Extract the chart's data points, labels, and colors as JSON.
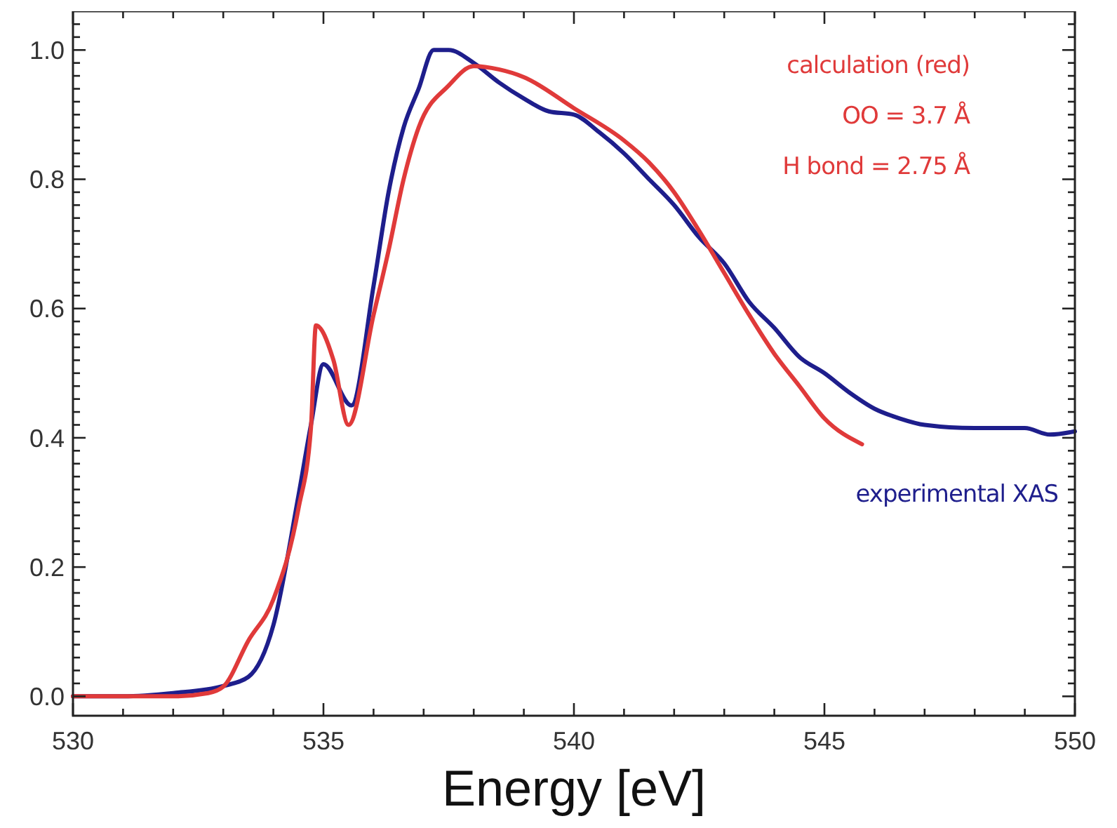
{
  "chart_data": {
    "type": "line",
    "xlabel": "Energy [eV]",
    "xlim": [
      530,
      550
    ],
    "ylim": [
      -0.03,
      1.06
    ],
    "xticks": [
      530,
      {
        "value": 531,
        "label": null
      },
      {
        "value": 532,
        "label": null
      },
      {
        "value": 533,
        "label": null
      },
      {
        "value": 534,
        "label": null
      },
      535,
      {
        "value": 536,
        "label": null
      },
      {
        "value": 537,
        "label": null
      },
      {
        "value": 538,
        "label": null
      },
      {
        "value": 539,
        "label": null
      },
      540,
      {
        "value": 541,
        "label": null
      },
      {
        "value": 542,
        "label": null
      },
      {
        "value": 543,
        "label": null
      },
      {
        "value": 544,
        "label": null
      },
      545,
      {
        "value": 546,
        "label": null
      },
      {
        "value": 547,
        "label": null
      },
      {
        "value": 548,
        "label": null
      },
      {
        "value": 549,
        "label": null
      },
      550
    ],
    "yticks": [
      {
        "value": 0,
        "label": "0.0"
      },
      {
        "value": 0.02,
        "label": null
      },
      {
        "value": 0.04,
        "label": null
      },
      {
        "value": 0.06,
        "label": null
      },
      {
        "value": 0.08,
        "label": null
      },
      {
        "value": 0.1,
        "label": null
      },
      {
        "value": 0.12,
        "label": null
      },
      {
        "value": 0.14,
        "label": null
      },
      {
        "value": 0.16,
        "label": null
      },
      {
        "value": 0.18,
        "label": null
      },
      0.2,
      {
        "value": 0.22,
        "label": null
      },
      {
        "value": 0.24,
        "label": null
      },
      {
        "value": 0.26,
        "label": null
      },
      {
        "value": 0.28,
        "label": null
      },
      {
        "value": 0.3,
        "label": null
      },
      {
        "value": 0.32,
        "label": null
      },
      {
        "value": 0.34,
        "label": null
      },
      {
        "value": 0.36,
        "label": null
      },
      {
        "value": 0.38,
        "label": null
      },
      0.4,
      {
        "value": 0.42,
        "label": null
      },
      {
        "value": 0.44,
        "label": null
      },
      {
        "value": 0.46,
        "label": null
      },
      {
        "value": 0.48,
        "label": null
      },
      {
        "value": 0.5,
        "label": null
      },
      {
        "value": 0.52,
        "label": null
      },
      {
        "value": 0.54,
        "label": null
      },
      {
        "value": 0.56,
        "label": null
      },
      {
        "value": 0.58,
        "label": null
      },
      0.6,
      {
        "value": 0.62,
        "label": null
      },
      {
        "value": 0.64,
        "label": null
      },
      {
        "value": 0.66,
        "label": null
      },
      {
        "value": 0.68,
        "label": null
      },
      {
        "value": 0.7,
        "label": null
      },
      {
        "value": 0.72,
        "label": null
      },
      {
        "value": 0.74,
        "label": null
      },
      {
        "value": 0.76,
        "label": null
      },
      {
        "value": 0.78,
        "label": null
      },
      0.8,
      {
        "value": 0.82,
        "label": null
      },
      {
        "value": 0.84,
        "label": null
      },
      {
        "value": 0.86,
        "label": null
      },
      {
        "value": 0.88,
        "label": null
      },
      {
        "value": 0.9,
        "label": null
      },
      {
        "value": 0.92,
        "label": null
      },
      {
        "value": 0.94,
        "label": null
      },
      {
        "value": 0.96,
        "label": null
      },
      {
        "value": 0.98,
        "label": null
      },
      {
        "value": 1.0,
        "label": "1.0"
      },
      {
        "value": 1.02,
        "label": null
      },
      {
        "value": 1.04,
        "label": null
      }
    ],
    "grid": false,
    "legend": false,
    "line_style": "solid",
    "marker": "none",
    "series": [
      {
        "name": "experimental XAS",
        "color": "#1e1e8c",
        "x": [
          530,
          531,
          532,
          533,
          533.5,
          534,
          534.5,
          534.75,
          535,
          535.56,
          536,
          536.3,
          536.6,
          536.9,
          537.2,
          537.5,
          538,
          538.5,
          539,
          539.5,
          540,
          540.5,
          541,
          541.5,
          542,
          542.5,
          543,
          543.5,
          544,
          544.5,
          545,
          545.5,
          546,
          546.5,
          547,
          548,
          549,
          549.5,
          550
        ],
        "values": [
          0,
          0,
          0.005,
          0.016,
          0.03,
          0.11,
          0.31,
          0.42,
          0.514,
          0.45,
          0.635,
          0.78,
          0.88,
          0.94,
          1.0,
          1.0,
          0.98,
          0.95,
          0.925,
          0.905,
          0.9,
          0.873,
          0.84,
          0.8,
          0.76,
          0.71,
          0.67,
          0.61,
          0.57,
          0.525,
          0.5,
          0.47,
          0.445,
          0.43,
          0.42,
          0.415,
          0.415,
          0.405,
          0.41
        ]
      },
      {
        "name": "calculation (red)",
        "color": "#e03a3a",
        "x": [
          530,
          532,
          532.7,
          533,
          533.5,
          534,
          534.5,
          534.75,
          534.85,
          535.2,
          535.5,
          536,
          536.3,
          536.6,
          536.9,
          537.5,
          538,
          538.5,
          539,
          540,
          541,
          541.5,
          542,
          542.5,
          543,
          543.5,
          544,
          544.5,
          545,
          545.75
        ],
        "values": [
          0,
          0,
          0.005,
          0.015,
          0.086,
          0.15,
          0.29,
          0.415,
          0.574,
          0.52,
          0.42,
          0.59,
          0.69,
          0.8,
          0.88,
          0.945,
          0.975,
          0.97,
          0.958,
          0.91,
          0.86,
          0.826,
          0.78,
          0.72,
          0.655,
          0.59,
          0.53,
          0.48,
          0.43,
          0.39
        ]
      }
    ],
    "annotations": [
      "OO = 3.7 Å",
      "H bond = 2.75 Å"
    ]
  }
}
